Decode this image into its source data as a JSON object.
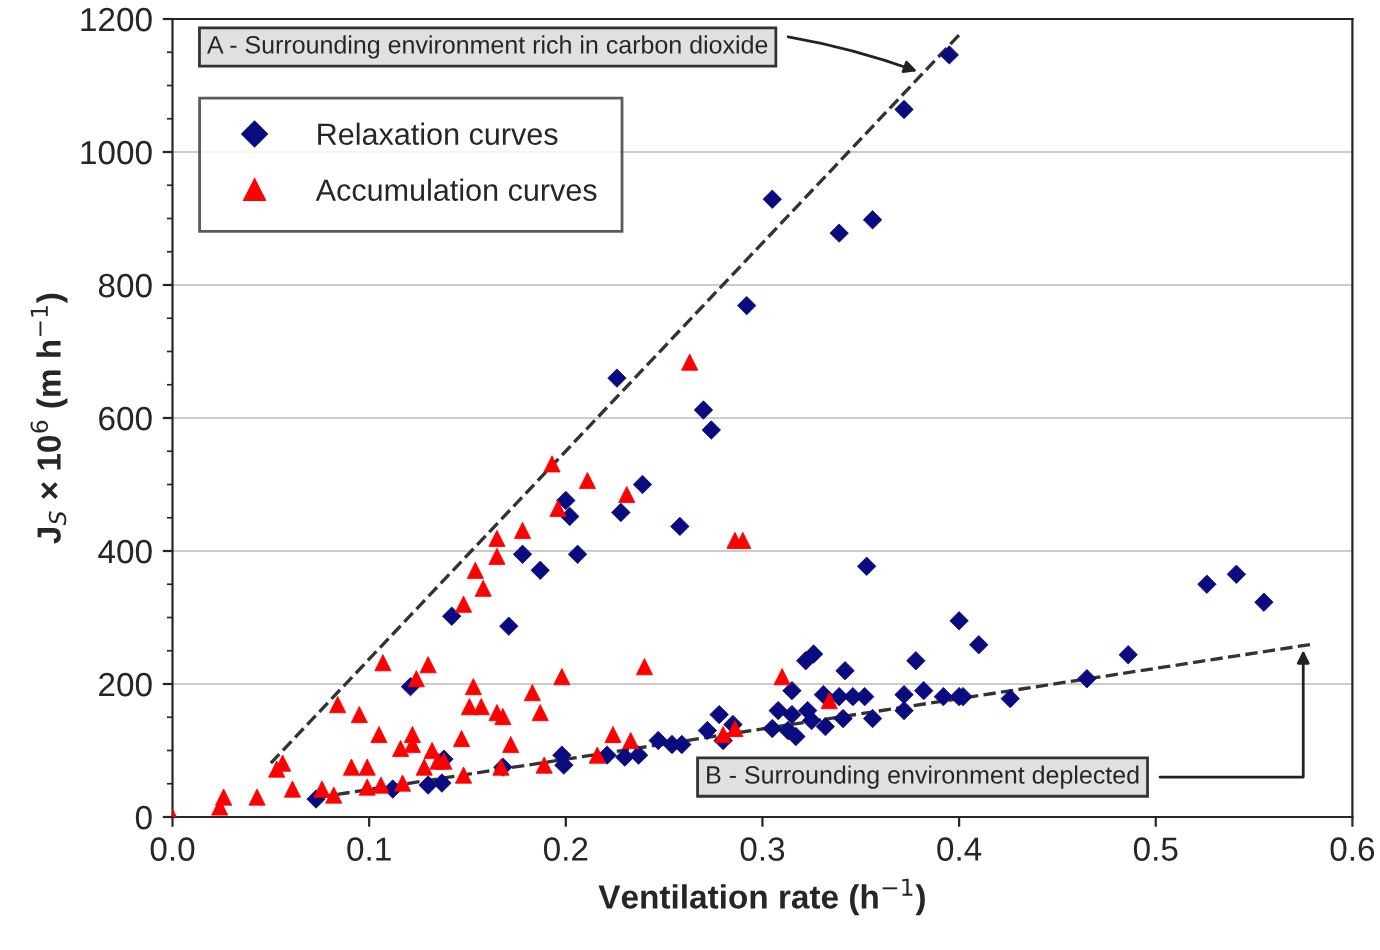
{
  "chart_data": {
    "type": "scatter",
    "xlabel": "Ventilation rate (h$^{−1}$)",
    "ylabel": "J$_{S}$ × 10$^{6}$ (m h$^{−1}$)",
    "xlim": [
      0.0,
      0.6
    ],
    "xticks": [
      {
        "value": 0,
        "label": "0.0"
      },
      0.1,
      0.2,
      0.3,
      0.4,
      0.5,
      0.6
    ],
    "ylim": [
      0,
      1200
    ],
    "yticks": [
      0,
      200,
      400,
      600,
      800,
      1000,
      1200
    ],
    "grid": "y",
    "legend": "top left",
    "series": [
      {
        "name": "Relaxation curves",
        "marker": "diamond",
        "color": "#0b0b80",
        "x": [
          0.395,
          0.372,
          0.305,
          0.339,
          0.356,
          0.292,
          0.226,
          0.27,
          0.274,
          0.239,
          0.228,
          0.258,
          0.2,
          0.202,
          0.178,
          0.206,
          0.187,
          0.142,
          0.171,
          0.121,
          0.353,
          0.322,
          0.326,
          0.342,
          0.378,
          0.315,
          0.331,
          0.339,
          0.346,
          0.352,
          0.372,
          0.382,
          0.392,
          0.4,
          0.308,
          0.315,
          0.323,
          0.325,
          0.313,
          0.317,
          0.332,
          0.341,
          0.356,
          0.372,
          0.305,
          0.272,
          0.278,
          0.28,
          0.285,
          0.247,
          0.254,
          0.259,
          0.23,
          0.237,
          0.221,
          0.199,
          0.198,
          0.073,
          0.112,
          0.13,
          0.137,
          0.138,
          0.168,
          0.526,
          0.541,
          0.555,
          0.486,
          0.465,
          0.426,
          0.41,
          0.4,
          0.402
        ],
        "values": [
          1146,
          1064,
          929,
          878,
          898,
          769,
          660,
          612,
          582,
          500,
          458,
          437,
          476,
          452,
          395,
          395,
          371,
          302,
          287,
          196,
          377,
          235,
          245,
          220,
          235,
          190,
          184,
          181,
          181,
          181,
          184,
          190,
          181,
          181,
          160,
          154,
          160,
          145,
          130,
          121,
          136,
          148,
          148,
          160,
          133,
          130,
          154,
          115,
          139,
          115,
          109,
          109,
          90,
          93,
          93,
          78,
          93,
          27,
          42,
          48,
          51,
          87,
          75,
          350,
          365,
          323,
          244,
          208,
          178,
          259,
          295,
          181
        ]
      },
      {
        "name": "Accumulation curves",
        "marker": "triangle",
        "color": "#ff0000",
        "x": [
          0.193,
          0.211,
          0.196,
          0.178,
          0.165,
          0.165,
          0.154,
          0.158,
          0.148,
          0.107,
          0.13,
          0.124,
          0.084,
          0.095,
          0.153,
          0.151,
          0.157,
          0.165,
          0.168,
          0.183,
          0.187,
          0.198,
          0.105,
          0.116,
          0.122,
          0.122,
          0.132,
          0.135,
          0.138,
          0.128,
          0.147,
          0.172,
          0.167,
          0.148,
          0.091,
          0.099,
          0.099,
          0.106,
          0.117,
          0.061,
          0.076,
          0.082,
          0.043,
          0.026,
          0.024,
          0.053,
          0.056,
          0.0,
          0.189,
          0.263,
          0.231,
          0.286,
          0.29,
          0.24,
          0.31,
          0.334,
          0.224,
          0.233,
          0.216,
          0.28,
          0.286
        ],
        "values": [
          531,
          506,
          464,
          431,
          419,
          392,
          371,
          344,
          320,
          232,
          229,
          208,
          169,
          154,
          196,
          166,
          166,
          157,
          151,
          187,
          157,
          211,
          124,
          103,
          124,
          109,
          100,
          84,
          84,
          75,
          118,
          109,
          75,
          63,
          75,
          75,
          45,
          48,
          51,
          42,
          42,
          33,
          30,
          30,
          15,
          72,
          81,
          0,
          78,
          684,
          485,
          416,
          416,
          226,
          211,
          175,
          124,
          115,
          93,
          124,
          133
        ]
      },
      {
        "type": "line",
        "line_style": "dashed",
        "color": "#333333",
        "x": [
          0.05,
          0.4
        ],
        "values": [
          81,
          1176
        ]
      },
      {
        "type": "line",
        "line_style": "dashed",
        "color": "#333333",
        "x": [
          0.075,
          0.58
        ],
        "values": [
          30,
          260
        ]
      }
    ],
    "annotations": [
      {
        "text": "A - Surrounding environment rich in carbon dioxide",
        "x": 0.38,
        "y": 1120
      },
      {
        "text": "B - Surrounding environment deplected",
        "x": 0.575,
        "y": 255
      }
    ]
  }
}
